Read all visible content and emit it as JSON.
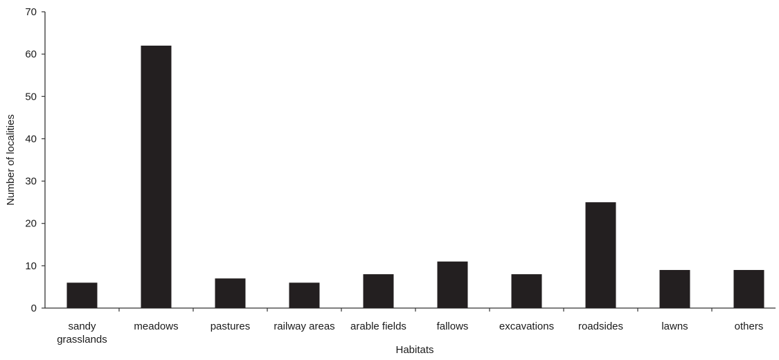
{
  "chart_data": {
    "type": "bar",
    "title": "",
    "xlabel": "Habitats",
    "ylabel": "Number of localities",
    "ylim": [
      0,
      70
    ],
    "yticks": [
      0,
      10,
      20,
      30,
      40,
      50,
      60,
      70
    ],
    "grid": false,
    "legend": "none",
    "bar_color": "#231f20",
    "axis_color": "#333333",
    "categories": [
      [
        "sandy",
        "grasslands"
      ],
      [
        "meadows"
      ],
      [
        "pastures"
      ],
      [
        "railway areas"
      ],
      [
        "arable fields"
      ],
      [
        "fallows"
      ],
      [
        "excavations"
      ],
      [
        "roadsides"
      ],
      [
        "lawns"
      ],
      [
        "others"
      ]
    ],
    "values": [
      6,
      62,
      7,
      6,
      8,
      11,
      8,
      25,
      9,
      9
    ]
  }
}
